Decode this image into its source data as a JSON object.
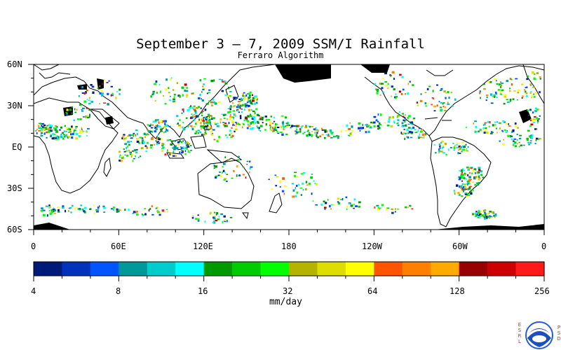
{
  "title": "September 3 – 7, 2009 SSM/I Rainfall",
  "subtitle": "Ferraro Algorithm",
  "map": {
    "lat_labels": [
      "60N",
      "30N",
      "EQ",
      "30S",
      "60S"
    ],
    "lon_labels": [
      "0",
      "60E",
      "120E",
      "180",
      "120W",
      "60W",
      "0"
    ]
  },
  "colorbar": {
    "colors": [
      "#001a7a",
      "#0033bb",
      "#0055ff",
      "#009999",
      "#00cccc",
      "#00ffff",
      "#009900",
      "#00cc00",
      "#00ff00",
      "#b3b300",
      "#dddd00",
      "#ffff00",
      "#ff5500",
      "#ff8000",
      "#ffaa00",
      "#990000",
      "#cc0000",
      "#ff1a1a"
    ],
    "tick_labels": [
      "4",
      "8",
      "16",
      "32",
      "64",
      "128",
      "256"
    ],
    "unit": "mm/day"
  },
  "logo": {
    "left_letters": "ESRL",
    "right_letters": "PSD",
    "emblem": "NOAA"
  }
}
